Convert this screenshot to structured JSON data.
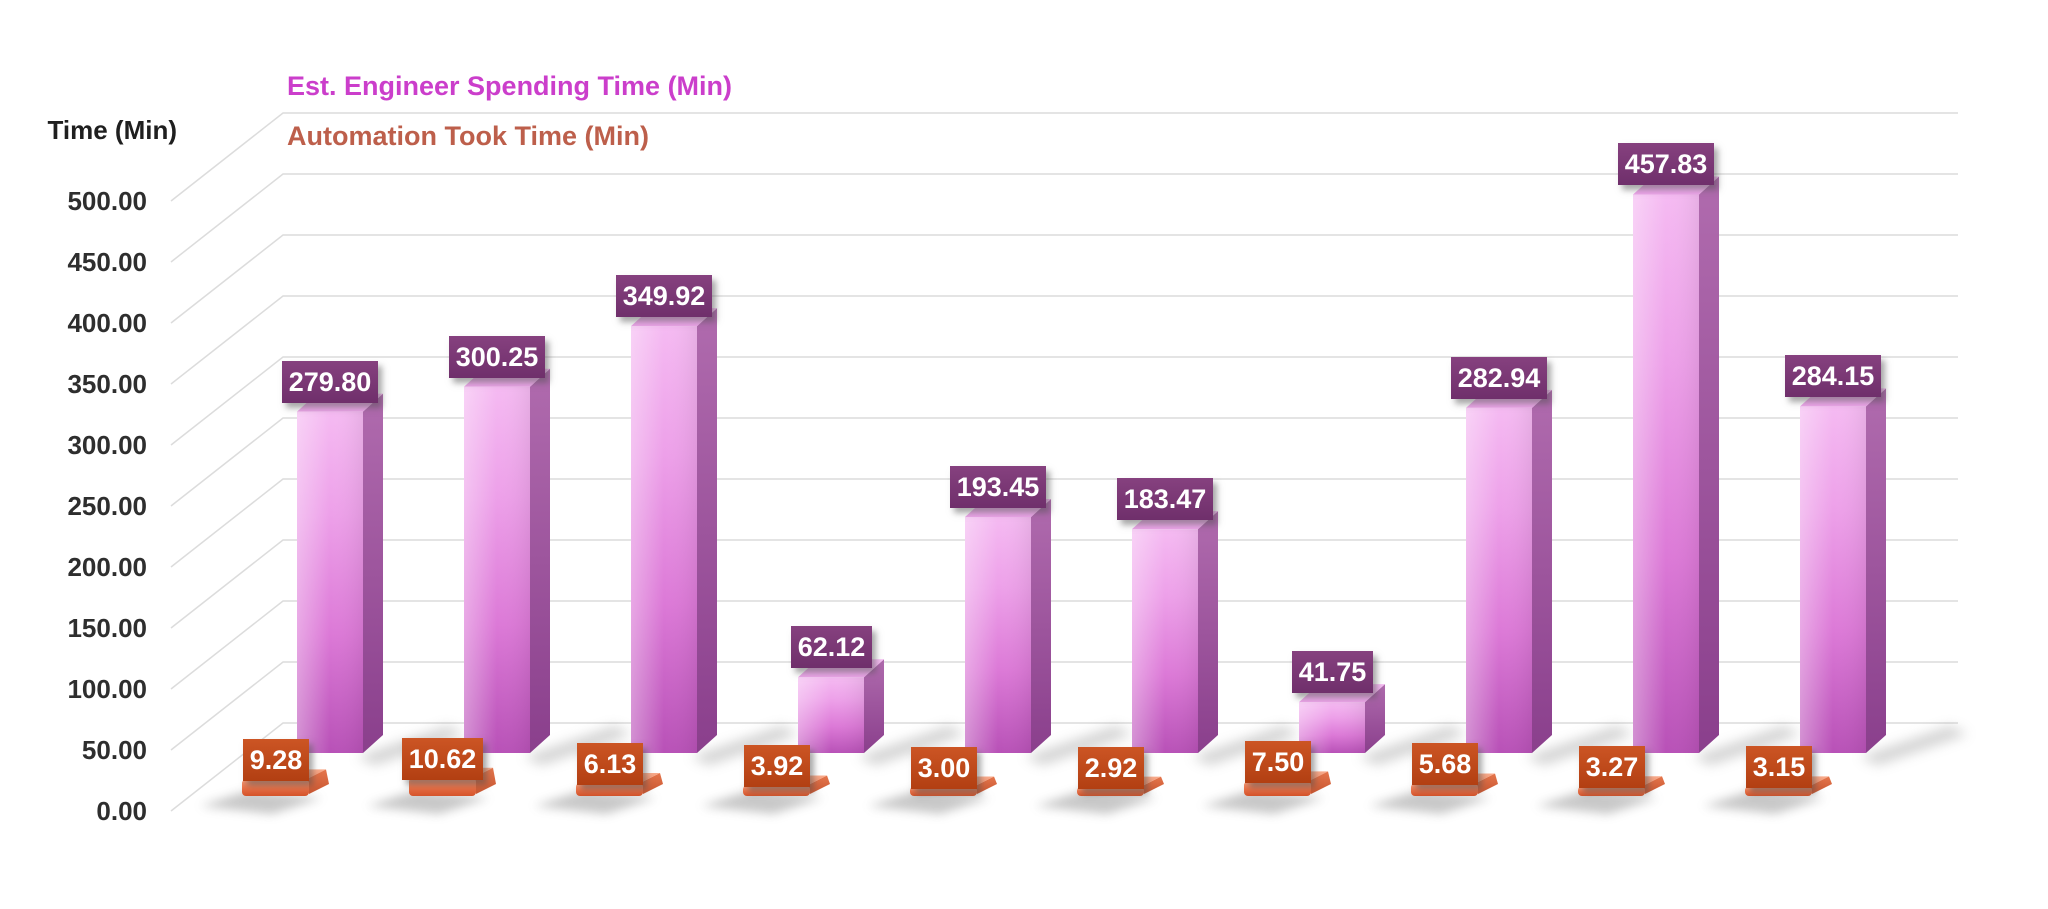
{
  "chart_data": {
    "type": "bar",
    "style": "3d-clustered",
    "title": "",
    "ylabel": "Time (Min)",
    "ylim": [
      0,
      500
    ],
    "ytick_step": 50,
    "yticks": [
      "0.00",
      "50.00",
      "100.00",
      "150.00",
      "200.00",
      "250.00",
      "300.00",
      "350.00",
      "400.00",
      "450.00",
      "500.00"
    ],
    "grid": true,
    "legend_position": "top-left",
    "series": [
      {
        "name": "Est. Engineer Spending Time (Min)",
        "legend_color": "#cb3ecb",
        "bar_color": "#d966d1",
        "label_box_color": "#7a3775",
        "values": [
          279.8,
          300.25,
          349.92,
          62.12,
          193.45,
          183.47,
          41.75,
          282.94,
          457.83,
          284.15
        ],
        "labels": [
          "279.80",
          "300.25",
          "349.92",
          "62.12",
          "193.45",
          "183.47",
          "41.75",
          "282.94",
          "457.83",
          "284.15"
        ]
      },
      {
        "name": "Automation Took Time (Min)",
        "legend_color": "#bd5f4b",
        "bar_color": "#e0653c",
        "label_box_color": "#c4491c",
        "values": [
          9.28,
          10.62,
          6.13,
          3.92,
          3.0,
          2.92,
          7.5,
          5.68,
          3.27,
          3.15
        ],
        "labels": [
          "9.28",
          "10.62",
          "6.13",
          "3.92",
          "3.00",
          "2.92",
          "7.50",
          "5.68",
          "3.27",
          "3.15"
        ]
      }
    ],
    "grid_color": "#dcdcdc"
  }
}
